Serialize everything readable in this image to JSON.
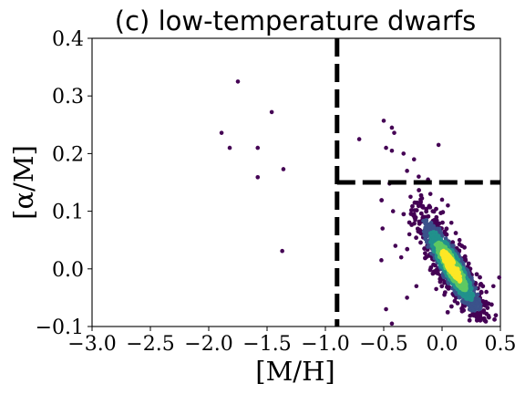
{
  "chart_data": {
    "type": "scatter",
    "title": "(c) low-temperature dwarfs",
    "xlabel": "[M/H]",
    "ylabel": "[α/M]",
    "xlim": [
      -3.0,
      0.5
    ],
    "ylim": [
      -0.1,
      0.4
    ],
    "xticks": [
      -3.0,
      -2.5,
      -2.0,
      -1.5,
      -1.0,
      -0.5,
      0.0,
      0.5
    ],
    "xtick_labels": [
      "−3.0",
      "−2.5",
      "−2.0",
      "−1.5",
      "−1.0",
      "−0.5",
      "0.0",
      "0.5"
    ],
    "yticks": [
      -0.1,
      0.0,
      0.1,
      0.2,
      0.3,
      0.4
    ],
    "ytick_labels": [
      "−0.1",
      "0.0",
      "0.1",
      "0.2",
      "0.3",
      "0.4"
    ],
    "grid": false,
    "colormap": "viridis",
    "colors": {
      "low_density": "#440154",
      "mid_low": "#3b528b",
      "mid": "#21918c",
      "mid_high": "#5ec962",
      "high_density": "#fde725",
      "divider": "#000000"
    },
    "divider_lines": [
      {
        "orientation": "vertical",
        "x": -0.9,
        "y_range": [
          -0.1,
          0.4
        ],
        "style": "dashed"
      },
      {
        "orientation": "horizontal",
        "y": 0.15,
        "x_range": [
          -0.9,
          0.5
        ],
        "style": "dashed"
      }
    ],
    "series": [
      {
        "points": [
          [
            -1.75,
            0.325
          ],
          [
            -1.46,
            0.272
          ],
          [
            -1.89,
            0.236
          ],
          [
            -1.82,
            0.21
          ],
          [
            -1.58,
            0.21
          ],
          [
            -1.58,
            0.159
          ],
          [
            -1.36,
            0.173
          ],
          [
            -1.37,
            0.031
          ],
          [
            -0.71,
            0.225
          ],
          [
            -0.5,
            0.257
          ],
          [
            -0.43,
            0.245
          ],
          [
            -0.41,
            0.236
          ],
          [
            -0.48,
            0.21
          ],
          [
            -0.43,
            0.205
          ],
          [
            -0.33,
            0.2
          ],
          [
            -0.24,
            0.19
          ],
          [
            -0.03,
            0.215
          ],
          [
            -0.3,
            0.17
          ],
          [
            -0.2,
            0.16
          ],
          [
            -0.17,
            0.15
          ],
          [
            -0.12,
            0.155
          ],
          [
            -0.45,
            0.148
          ],
          [
            -0.38,
            0.15
          ],
          [
            -0.51,
            0.07
          ],
          [
            -0.42,
            0.1
          ],
          [
            -0.18,
            0.11
          ],
          [
            -0.27,
            0.125
          ],
          [
            -0.1,
            0.13
          ],
          [
            0.0,
            0.12
          ],
          [
            0.05,
            0.11
          ],
          [
            -0.48,
            -0.07
          ],
          [
            -0.43,
            -0.095
          ],
          [
            -0.3,
            -0.05
          ],
          [
            -0.22,
            -0.03
          ],
          [
            0.44,
            -0.03
          ],
          [
            0.49,
            -0.015
          ],
          [
            0.38,
            -0.04
          ],
          [
            0.32,
            -0.045
          ],
          [
            0.22,
            -0.06
          ],
          [
            0.12,
            -0.05
          ],
          [
            0.02,
            -0.045
          ],
          [
            -0.05,
            -0.035
          ],
          [
            0.28,
            -0.055
          ],
          [
            -0.35,
            0.02
          ],
          [
            -0.28,
            0.06
          ],
          [
            -0.23,
            0.085
          ],
          [
            -0.14,
            0.09
          ],
          [
            -0.08,
            0.1
          ],
          [
            0.08,
            0.08
          ],
          [
            0.15,
            0.05
          ],
          [
            -0.52,
            0.015
          ],
          [
            -0.4,
            0.04
          ]
        ]
      }
    ],
    "density_core": {
      "center": [
        0.08,
        0.005
      ],
      "count": 1100
    }
  }
}
